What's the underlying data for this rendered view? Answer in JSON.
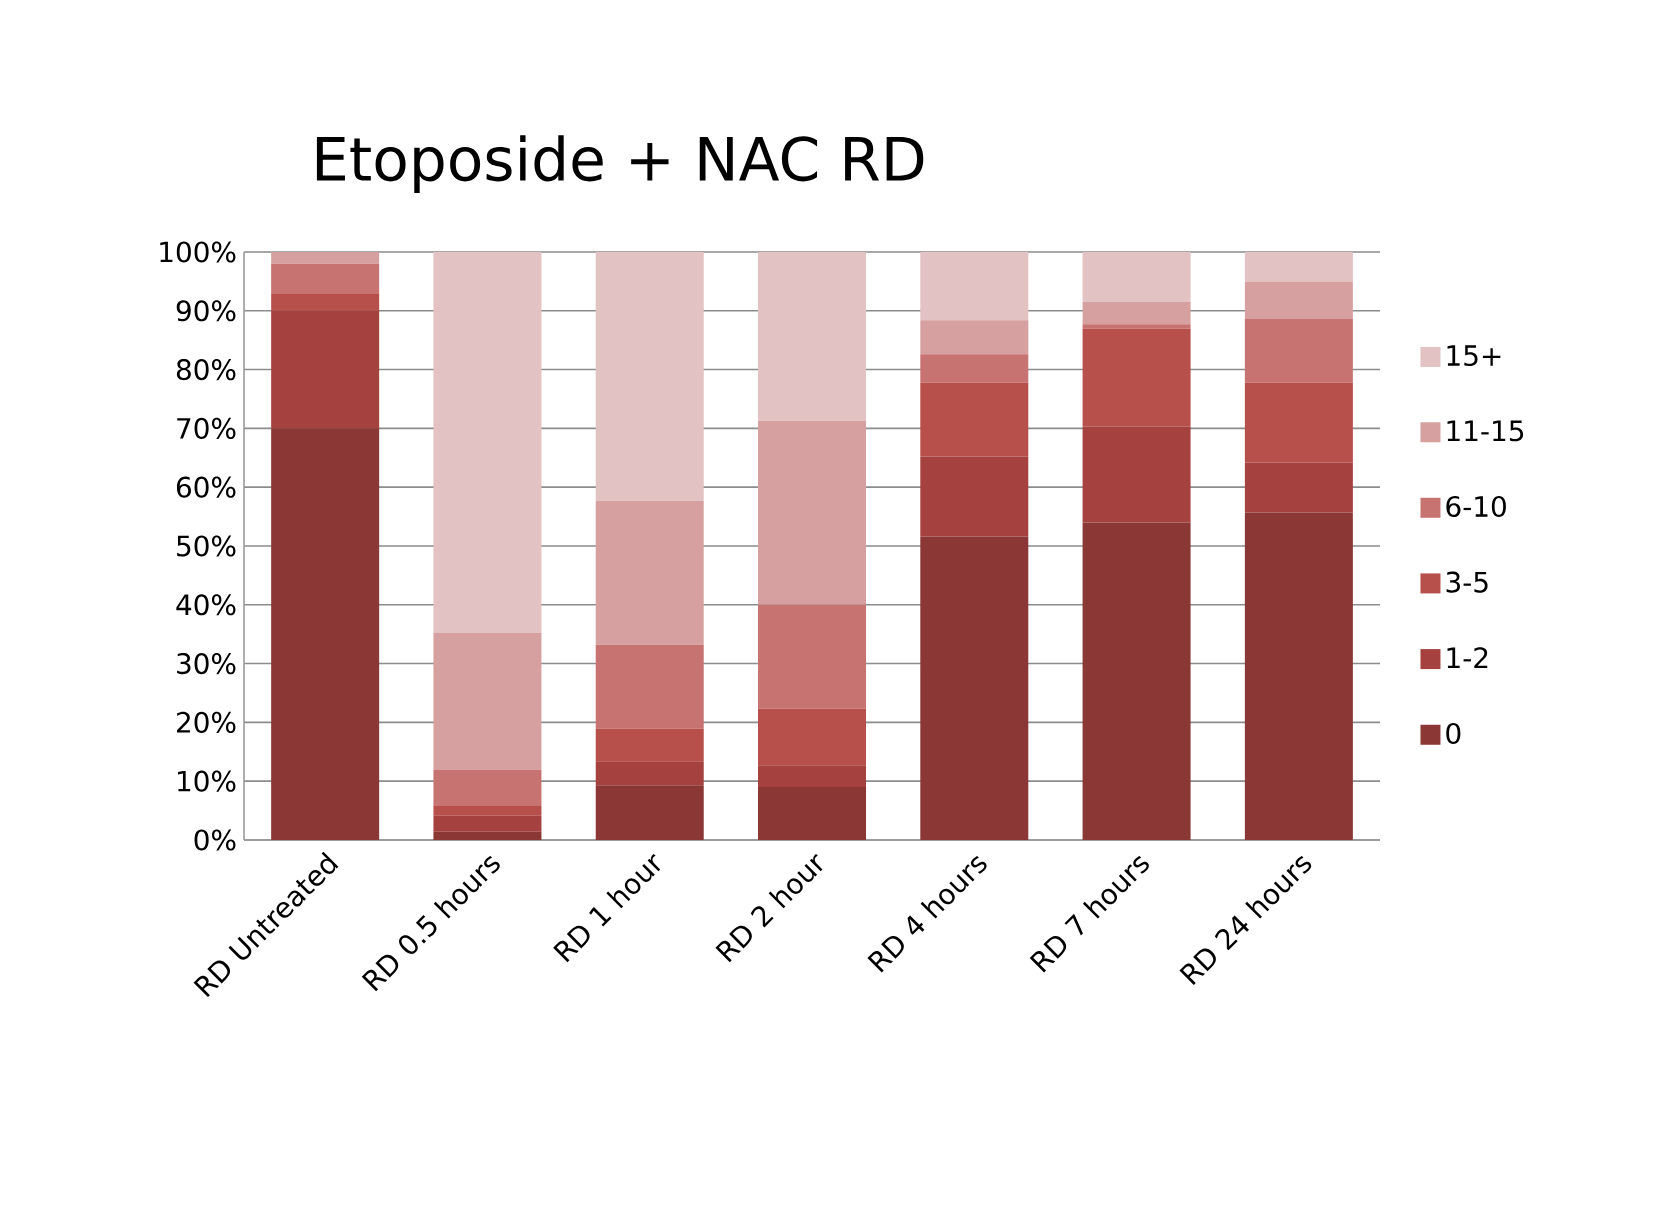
{
  "chart_data": {
    "type": "bar",
    "stacked": true,
    "title": "Etoposide + NAC RD",
    "categories": [
      "RD Untreated",
      "RD 0.5 hours",
      "RD 1 hour",
      "RD 2 hour",
      "RD 4 hours",
      "RD 7 hours",
      "RD 24 hours"
    ],
    "series": [
      {
        "name": "0",
        "color": "#8b3735",
        "values": [
          70,
          1.4,
          9.3,
          9.0,
          51.6,
          54.0,
          55.7
        ]
      },
      {
        "name": "1-2",
        "color": "#a5423f",
        "values": [
          20,
          2.7,
          4.1,
          3.7,
          13.6,
          16.3,
          8.5
        ]
      },
      {
        "name": "3-5",
        "color": "#b74f4b",
        "values": [
          3,
          1.8,
          5.5,
          9.6,
          12.6,
          16.7,
          13.6
        ]
      },
      {
        "name": "6-10",
        "color": "#c77371",
        "values": [
          5,
          6.1,
          14.3,
          17.7,
          4.8,
          0.7,
          10.9
        ]
      },
      {
        "name": "11-15",
        "color": "#d6a0a0",
        "values": [
          2.0,
          23.2,
          24.5,
          31.3,
          5.8,
          3.8,
          6.2
        ]
      },
      {
        "name": "15+",
        "color": "#e2c2c3",
        "values": [
          null,
          64.8,
          42.3,
          28.7,
          11.6,
          8.5,
          5.1
        ]
      }
    ],
    "ylim": [
      0,
      100
    ],
    "yticks": [
      {
        "value": 0,
        "label": "0%"
      },
      {
        "value": 10,
        "label": "10%"
      },
      {
        "value": 20,
        "label": "20%"
      },
      {
        "value": 30,
        "label": "30%"
      },
      {
        "value": 40,
        "label": "40%"
      },
      {
        "value": 50,
        "label": "50%"
      },
      {
        "value": 60,
        "label": "60%"
      },
      {
        "value": 70,
        "label": "70%"
      },
      {
        "value": 80,
        "label": "80%"
      },
      {
        "value": 90,
        "label": "90%"
      },
      {
        "value": 100,
        "label": "100%"
      }
    ],
    "grid": "y",
    "legend": "right"
  }
}
